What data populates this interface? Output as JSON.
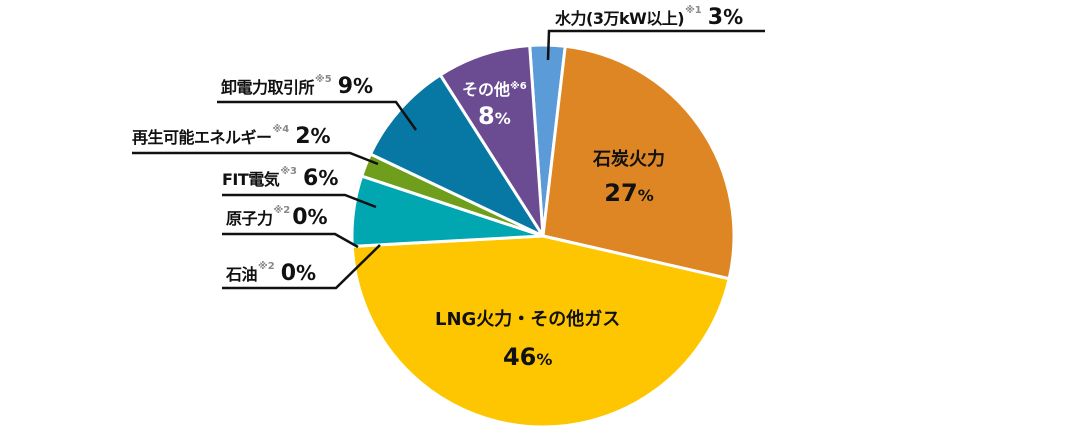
{
  "chart_data": {
    "type": "pie",
    "title": "",
    "start_angle_deg": -4,
    "direction": "clockwise",
    "slices": [
      {
        "key": "hydro",
        "label": "水力(3万kW以上)",
        "note": "※1",
        "value": 3,
        "pct_text": "3",
        "color": "#5a9bd8",
        "label_pos": "outside"
      },
      {
        "key": "coal",
        "label": "石炭火力",
        "note": "",
        "value": 27,
        "pct_text": "27",
        "color": "#de8623",
        "label_pos": "inside"
      },
      {
        "key": "lng",
        "label": "LNG火力・その他ガス",
        "note": "",
        "value": 46,
        "pct_text": "46",
        "color": "#fec600",
        "label_pos": "inside"
      },
      {
        "key": "oil",
        "label": "石油",
        "note": "※2",
        "value": 0,
        "pct_text": "0",
        "color": "#fec600",
        "label_pos": "outside"
      },
      {
        "key": "nuclear",
        "label": "原子力",
        "note": "※2",
        "value": 0,
        "pct_text": "0",
        "color": "#00a7b0",
        "label_pos": "outside"
      },
      {
        "key": "fit",
        "label": "FIT電気",
        "note": "※3",
        "value": 6,
        "pct_text": "6",
        "color": "#00a7b0",
        "label_pos": "outside"
      },
      {
        "key": "renewable",
        "label": "再生可能エネルギー",
        "note": "※4",
        "value": 2,
        "pct_text": "2",
        "color": "#6f9e1c",
        "label_pos": "outside"
      },
      {
        "key": "jepx",
        "label": "卸電力取引所",
        "note": "※5",
        "value": 9,
        "pct_text": "9",
        "color": "#0778a3",
        "label_pos": "outside"
      },
      {
        "key": "other",
        "label": "その他",
        "note": "※6",
        "value": 8,
        "pct_text": "8",
        "color": "#6b4c93",
        "label_pos": "inside"
      }
    ],
    "unit": "%"
  },
  "labels": {
    "hydro": {
      "name": "水力(3万kW以上)",
      "note": "※1",
      "pct": "3",
      "unit": "%"
    },
    "coal": {
      "name": "石炭火力",
      "pct": "27",
      "unit": "%"
    },
    "lng": {
      "name": "LNG火力・その他ガス",
      "pct": "46",
      "unit": "%"
    },
    "oil": {
      "name": "石油",
      "note": "※2",
      "pct": "0",
      "unit": "%"
    },
    "nuclear": {
      "name": "原子力",
      "note": "※2",
      "pct": "0",
      "unit": "%"
    },
    "fit": {
      "name": "FIT電気",
      "note": "※3",
      "pct": "6",
      "unit": "%"
    },
    "renewable": {
      "name": "再生可能エネルギー",
      "note": "※4",
      "pct": "2",
      "unit": "%"
    },
    "jepx": {
      "name": "卸電力取引所",
      "note": "※5",
      "pct": "9",
      "unit": "%"
    },
    "other": {
      "name": "その他",
      "note": "※6",
      "pct": "8",
      "unit": "%"
    }
  }
}
